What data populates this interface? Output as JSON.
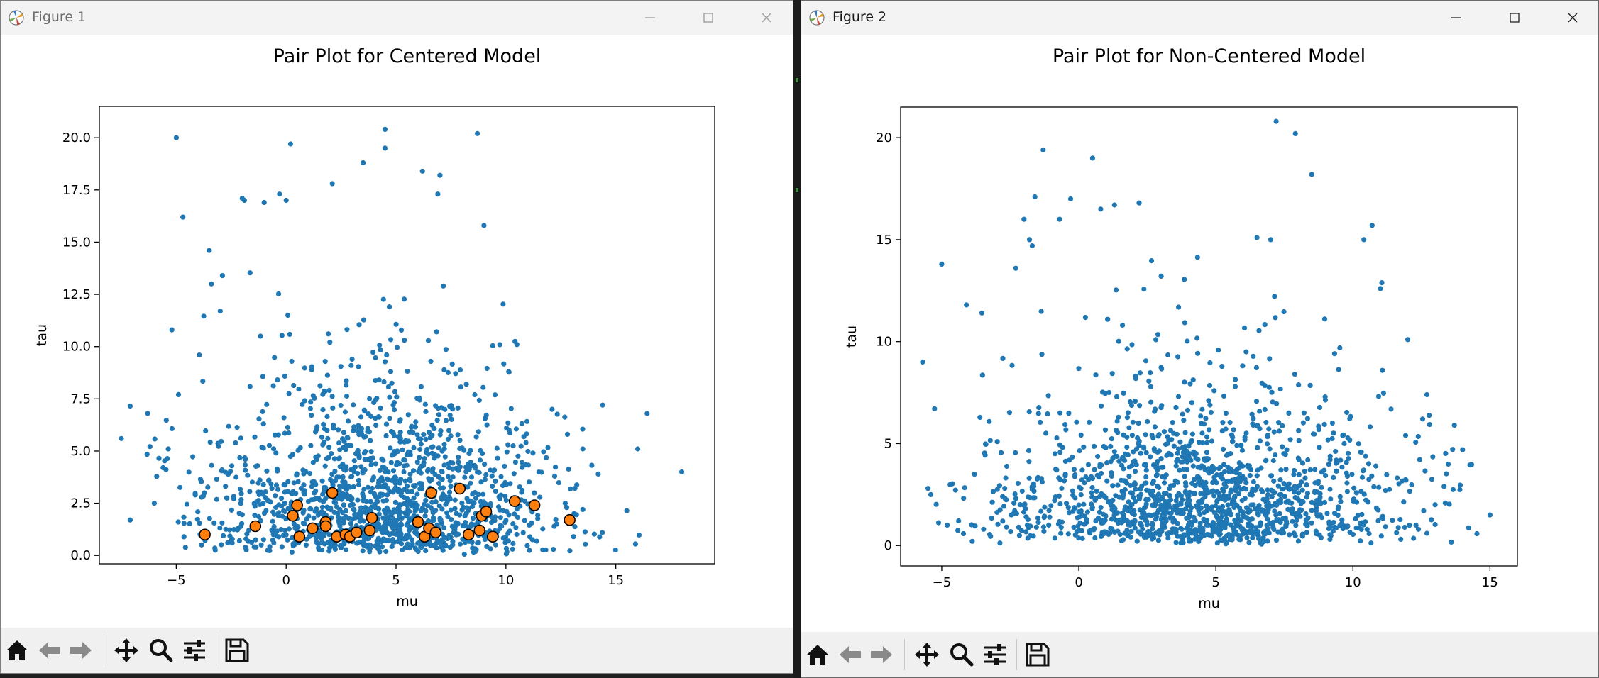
{
  "windows": [
    {
      "id": "fig1",
      "title": "Figure 1",
      "active": false,
      "plot": {
        "title": "Pair Plot for Centered Model",
        "xlabel": "mu",
        "ylabel": "tau"
      }
    },
    {
      "id": "fig2",
      "title": "Figure 2",
      "active": true,
      "plot": {
        "title": "Pair Plot for Non-Centered Model",
        "xlabel": "mu",
        "ylabel": "tau"
      }
    }
  ],
  "toolbar_icons": [
    "home-icon",
    "back-arrow-icon",
    "forward-arrow-icon",
    "pan-icon",
    "zoom-icon",
    "configure-subplots-icon",
    "save-icon"
  ],
  "chart_data": [
    {
      "type": "scatter",
      "title": "Pair Plot for Centered Model",
      "xlabel": "mu",
      "ylabel": "tau",
      "xlim": [
        -8.5,
        19.5
      ],
      "ylim": [
        -0.4,
        21.5
      ],
      "xticks": [
        -5,
        0,
        5,
        10,
        15
      ],
      "xtick_labels": [
        "−5",
        "0",
        "5",
        "10",
        "15"
      ],
      "yticks": [
        0,
        2.5,
        5,
        7.5,
        10,
        12.5,
        15,
        17.5,
        20
      ],
      "ytick_labels": [
        "0.0",
        "2.5",
        "5.0",
        "7.5",
        "10.0",
        "12.5",
        "15.0",
        "17.5",
        "20.0"
      ],
      "grid": false,
      "series": [
        {
          "kind": "samples",
          "color": "#1f77b4",
          "n_points": 1500,
          "center_mu": 4.4,
          "scale_mu": 4.0,
          "tau_scale": 3.6,
          "points": [
            [
              -7.5,
              5.6
            ],
            [
              -7.1,
              1.7
            ],
            [
              -6.3,
              6.8
            ],
            [
              -6.0,
              2.5
            ],
            [
              -5.6,
              4.2
            ],
            [
              -5.2,
              10.8
            ],
            [
              -5.0,
              20.0
            ],
            [
              -4.7,
              16.2
            ],
            [
              -4.9,
              7.7
            ],
            [
              -3.5,
              14.6
            ],
            [
              -3.4,
              13.0
            ],
            [
              -3.0,
              11.7
            ],
            [
              -2.9,
              13.4
            ],
            [
              -2.0,
              17.1
            ],
            [
              -1.9,
              17.0
            ],
            [
              -1.0,
              16.9
            ],
            [
              -0.3,
              17.3
            ],
            [
              0.2,
              19.7
            ],
            [
              0.0,
              17.0
            ],
            [
              2.1,
              17.8
            ],
            [
              3.5,
              18.8
            ],
            [
              4.5,
              19.5
            ],
            [
              4.5,
              20.4
            ],
            [
              6.2,
              18.4
            ],
            [
              7.0,
              18.2
            ],
            [
              6.9,
              17.3
            ],
            [
              8.7,
              20.2
            ],
            [
              9.0,
              15.8
            ],
            [
              10.5,
              10.1
            ],
            [
              12.1,
              7.0
            ],
            [
              12.8,
              5.8
            ],
            [
              13.5,
              5.1
            ],
            [
              14.4,
              7.2
            ],
            [
              14.2,
              3.9
            ],
            [
              16.0,
              5.1
            ],
            [
              18.0,
              4.0
            ],
            [
              12.7,
              2.5
            ],
            [
              13.1,
              2.0
            ],
            [
              13.5,
              2.2
            ]
          ]
        },
        {
          "kind": "divergences",
          "color": "#ff7f0e",
          "edgecolor": "#000000",
          "points": [
            [
              -3.7,
              1.0
            ],
            [
              -1.4,
              1.4
            ],
            [
              0.3,
              1.9
            ],
            [
              0.5,
              2.4
            ],
            [
              0.6,
              0.9
            ],
            [
              1.2,
              1.3
            ],
            [
              1.8,
              1.6
            ],
            [
              1.8,
              1.4
            ],
            [
              2.1,
              3.0
            ],
            [
              2.3,
              0.9
            ],
            [
              2.7,
              1.0
            ],
            [
              2.9,
              0.9
            ],
            [
              3.2,
              1.1
            ],
            [
              3.8,
              1.2
            ],
            [
              3.9,
              1.8
            ],
            [
              6.0,
              1.6
            ],
            [
              6.3,
              0.9
            ],
            [
              6.5,
              1.3
            ],
            [
              6.6,
              3.0
            ],
            [
              6.8,
              1.1
            ],
            [
              7.9,
              3.2
            ],
            [
              8.3,
              1.0
            ],
            [
              8.8,
              1.2
            ],
            [
              8.9,
              1.9
            ],
            [
              9.1,
              2.1
            ],
            [
              9.4,
              0.9
            ],
            [
              10.4,
              2.6
            ],
            [
              11.3,
              2.4
            ],
            [
              12.9,
              1.7
            ]
          ]
        }
      ]
    },
    {
      "type": "scatter",
      "title": "Pair Plot for Non-Centered Model",
      "xlabel": "mu",
      "ylabel": "tau",
      "xlim": [
        -6.5,
        16.0
      ],
      "ylim": [
        -1.0,
        21.5
      ],
      "xticks": [
        -5,
        0,
        5,
        10,
        15
      ],
      "xtick_labels": [
        "−5",
        "0",
        "5",
        "10",
        "15"
      ],
      "yticks": [
        0,
        5,
        10,
        15,
        20
      ],
      "ytick_labels": [
        "0",
        "5",
        "10",
        "15",
        "20"
      ],
      "grid": false,
      "series": [
        {
          "kind": "samples",
          "color": "#1f77b4",
          "n_points": 1500,
          "center_mu": 4.4,
          "scale_mu": 3.8,
          "tau_scale": 3.4,
          "points": [
            [
              -5.7,
              9.0
            ],
            [
              -5.0,
              13.8
            ],
            [
              -5.4,
              2.5
            ],
            [
              -5.5,
              2.8
            ],
            [
              -4.8,
              1.0
            ],
            [
              -4.1,
              11.8
            ],
            [
              -2.3,
              13.6
            ],
            [
              -2.0,
              16.0
            ],
            [
              -1.8,
              15.0
            ],
            [
              -1.7,
              14.7
            ],
            [
              -1.3,
              19.4
            ],
            [
              -1.6,
              17.1
            ],
            [
              -0.7,
              16.0
            ],
            [
              -0.3,
              17.0
            ],
            [
              0.5,
              19.0
            ],
            [
              0.8,
              16.5
            ],
            [
              1.3,
              16.7
            ],
            [
              2.2,
              16.8
            ],
            [
              6.5,
              15.1
            ],
            [
              7.0,
              15.0
            ],
            [
              7.2,
              20.8
            ],
            [
              7.9,
              20.2
            ],
            [
              8.5,
              18.2
            ],
            [
              10.4,
              15.0
            ],
            [
              10.7,
              15.7
            ],
            [
              11.0,
              12.6
            ],
            [
              12.0,
              10.1
            ],
            [
              12.7,
              7.4
            ],
            [
              13.7,
              5.9
            ],
            [
              14.0,
              4.7
            ],
            [
              15.0,
              1.5
            ],
            [
              13.0,
              2.0
            ],
            [
              12.3,
              1.0
            ],
            [
              12.7,
              0.6
            ]
          ]
        }
      ]
    }
  ]
}
